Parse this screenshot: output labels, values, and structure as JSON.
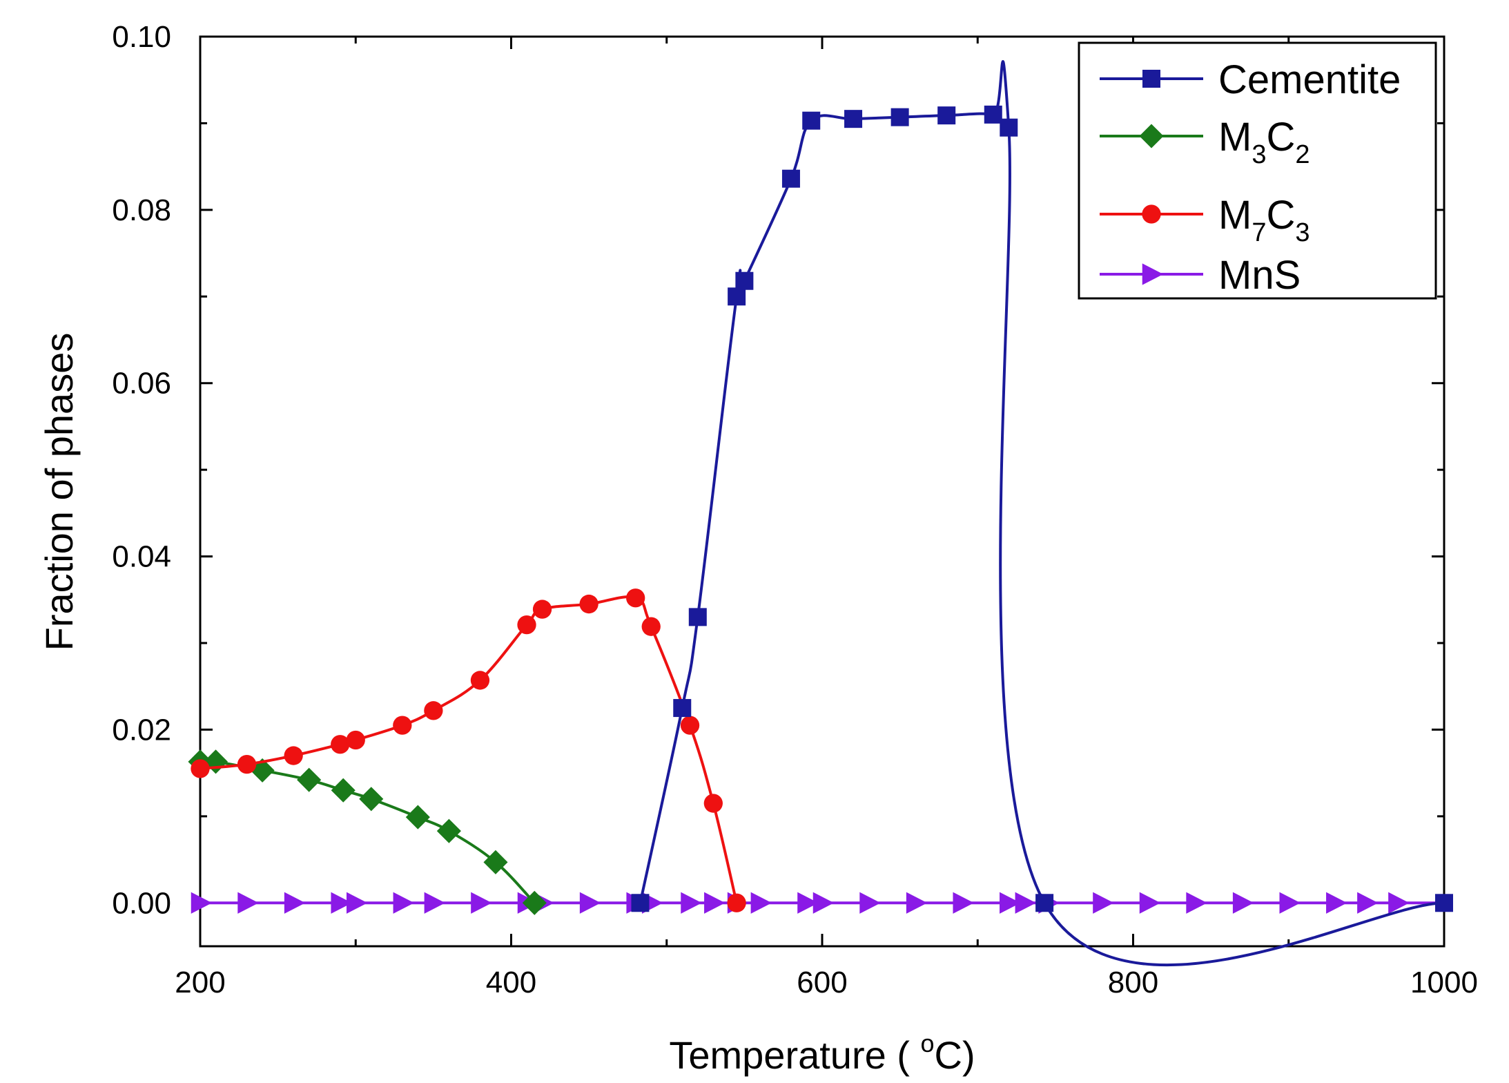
{
  "chart_data": {
    "type": "line",
    "xlabel": "Temperature ( ",
    "xlabel_unit_sup": "o",
    "xlabel_unit": "C)",
    "ylabel": "Fraction of phases",
    "xlim": [
      200,
      1000
    ],
    "ylim": [
      -0.005,
      0.1
    ],
    "x_ticks": [
      200,
      400,
      600,
      800,
      1000
    ],
    "x_tick_labels": [
      "200",
      "400",
      "600",
      "800",
      "1000"
    ],
    "y_ticks": [
      0.0,
      0.02,
      0.04,
      0.06,
      0.08,
      0.1
    ],
    "y_tick_labels": [
      "0.00",
      "0.02",
      "0.04",
      "0.06",
      "0.08",
      "0.10"
    ],
    "legend_position": "top-right",
    "series": [
      {
        "name": "Cementite",
        "label_parts": [
          {
            "t": "Cementite",
            "sub": false
          }
        ],
        "color": "#1a1a9a",
        "marker": "square",
        "x": [
          483,
          510,
          520,
          545,
          550,
          580,
          593,
          620,
          650,
          680,
          710,
          720,
          743,
          1000
        ],
        "y": [
          0.0,
          0.0225,
          0.033,
          0.07,
          0.0718,
          0.0836,
          0.0903,
          0.0905,
          0.0907,
          0.0909,
          0.091,
          0.0895,
          0.0,
          0.0
        ]
      },
      {
        "name": "M3C2",
        "label_parts": [
          {
            "t": "M",
            "sub": false
          },
          {
            "t": "3",
            "sub": true
          },
          {
            "t": "C",
            "sub": false
          },
          {
            "t": "2",
            "sub": true
          }
        ],
        "color": "#1a7a1a",
        "marker": "diamond",
        "x": [
          200,
          210,
          240,
          270,
          292,
          310,
          340,
          360,
          390,
          415
        ],
        "y": [
          0.0163,
          0.0163,
          0.0153,
          0.0142,
          0.013,
          0.012,
          0.0099,
          0.0083,
          0.0047,
          0.0
        ]
      },
      {
        "name": "M7C3",
        "label_parts": [
          {
            "t": "M",
            "sub": false
          },
          {
            "t": "7",
            "sub": true
          },
          {
            "t": "C",
            "sub": false
          },
          {
            "t": "3",
            "sub": true
          }
        ],
        "color": "#ee1111",
        "marker": "circle",
        "x": [
          200,
          230,
          260,
          290,
          300,
          330,
          350,
          380,
          410,
          420,
          450,
          480,
          490,
          515,
          530,
          545
        ],
        "y": [
          0.0155,
          0.016,
          0.017,
          0.0183,
          0.0188,
          0.0205,
          0.0222,
          0.0257,
          0.0321,
          0.0339,
          0.0345,
          0.0352,
          0.0319,
          0.0205,
          0.0115,
          0.0
        ]
      },
      {
        "name": "MnS",
        "label_parts": [
          {
            "t": "MnS",
            "sub": false
          }
        ],
        "color": "#8a1ae6",
        "marker": "triangle-right",
        "x": [
          200,
          230,
          260,
          290,
          300,
          330,
          350,
          380,
          410,
          420,
          450,
          480,
          490,
          515,
          530,
          545,
          560,
          590,
          600,
          630,
          660,
          690,
          720,
          730,
          745,
          780,
          810,
          840,
          870,
          900,
          930,
          950,
          970,
          1000
        ],
        "y": [
          0,
          0,
          0,
          0,
          0,
          0,
          0,
          0,
          0,
          0,
          0,
          0,
          0,
          0,
          0,
          0,
          0,
          0,
          0,
          0,
          0,
          0,
          0,
          0,
          0,
          0,
          0,
          0,
          0,
          0,
          0,
          0,
          0,
          0
        ]
      }
    ]
  }
}
